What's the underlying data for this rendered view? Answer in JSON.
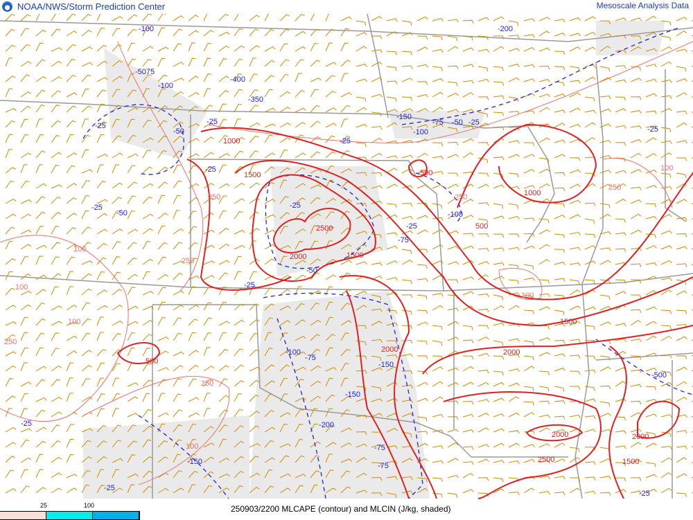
{
  "header": {
    "title": "NOAA/NWS/Storm Prediction Center",
    "right_title": "Mesoscale Analysis Data",
    "logo": "noaa-logo"
  },
  "footer": {
    "caption": "250903/2200 MLCAPE (contour) and MLCIN (J/kg, shaded)",
    "legend": {
      "ticks": [
        "25",
        "100"
      ],
      "colors": [
        "#fce0d8",
        "#00eeee",
        "#00b0ee"
      ]
    }
  },
  "colors": {
    "cape_contour": "#e02020",
    "cape_low_contour": "#f07070",
    "cin_contour": "#2020e0",
    "wind_barbs": "#d08a00",
    "borders": "#999999"
  },
  "map": {
    "cape_labels": [
      "1000",
      "1500",
      "2000",
      "2500",
      "1500",
      "500",
      "500",
      "1000",
      "1500",
      "2000",
      "2000",
      "2000",
      "2500",
      "1500",
      "500",
      "2000"
    ],
    "cape_low_labels": [
      "250",
      "100",
      "100",
      "100",
      "100",
      "250",
      "250",
      "100",
      "250",
      "250",
      "250",
      "100"
    ],
    "cin_labels": [
      "-100",
      "-5075",
      "-100",
      "-400",
      "-350",
      "-25",
      "-50",
      "-25",
      "-25",
      "-25",
      "-25",
      "-50",
      "-25",
      "-50",
      "-25",
      "-75",
      "-100",
      "-100",
      "-75",
      "-150",
      "-150",
      "-150",
      "-200",
      "-75",
      "-75",
      "-25",
      "-25",
      "-500",
      "-200",
      "-150",
      "-100",
      "-75",
      "-50",
      "-25",
      "-25",
      "-25",
      "-25"
    ]
  }
}
